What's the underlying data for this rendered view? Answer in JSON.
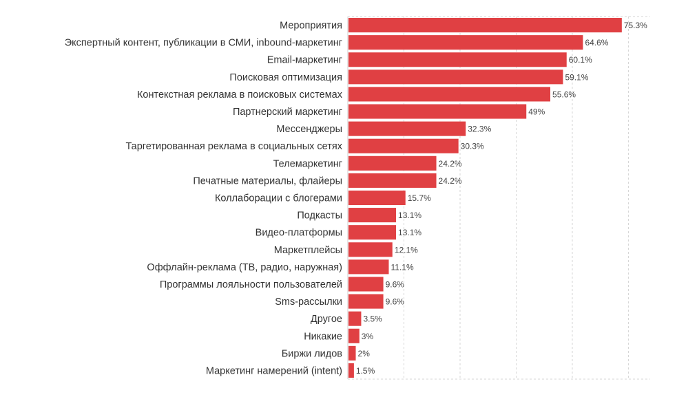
{
  "chart_data": {
    "type": "bar",
    "orientation": "horizontal",
    "title": "",
    "xlabel": "",
    "ylabel": "",
    "xlim": [
      0,
      83.3
    ],
    "grid": true,
    "bar_color": "#e04043",
    "categories": [
      "Мероприятия",
      "Экспертный контент, публикации в СМИ, inbound-маркетинг",
      "Email-маркетинг",
      "Поисковая оптимизация",
      "Контекстная реклама в поисковых системах",
      "Партнерский маркетинг",
      "Мессенджеры",
      "Таргетированная реклама в социальных сетях",
      "Телемаркетинг",
      "Печатные материалы, флайеры",
      "Коллаборации с блогерами",
      "Подкасты",
      "Видео-платформы",
      "Маркетплейсы",
      "Оффлайн-реклама (ТВ, радио, наружная)",
      "Программы лояльности пользователей",
      "Sms-рассылки",
      "Другое",
      "Никакие",
      "Биржи лидов",
      "Маркетинг намерений (intent)"
    ],
    "values": [
      75.3,
      64.6,
      60.1,
      59.1,
      55.6,
      49,
      32.3,
      30.3,
      24.2,
      24.2,
      15.7,
      13.1,
      13.1,
      12.1,
      11.1,
      9.6,
      9.6,
      3.5,
      3,
      2,
      1.5
    ],
    "labels": [
      "75.3%",
      "64.6%",
      "60.1%",
      "59.1%",
      "55.6%",
      "49%",
      "32.3%",
      "30.3%",
      "24.2%",
      "24.2%",
      "15.7%",
      "13.1%",
      "13.1%",
      "12.1%",
      "11.1%",
      "9.6%",
      "9.6%",
      "3.5%",
      "3%",
      "2%",
      "1.5%"
    ]
  }
}
